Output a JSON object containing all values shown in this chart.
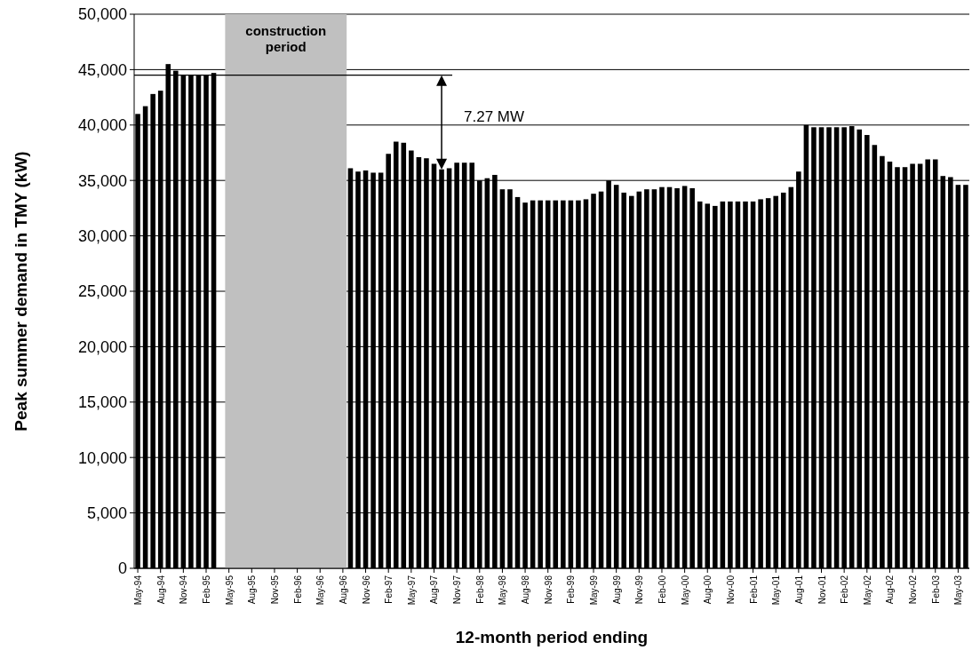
{
  "chart_data": {
    "type": "bar",
    "xlabel": "12-month period ending",
    "ylabel": "Peak summer demand in TMY (kW)",
    "categories": [
      "May-94",
      null,
      null,
      "Aug-94",
      null,
      null,
      "Nov-94",
      null,
      null,
      "Feb-95",
      null,
      null,
      "May-95",
      null,
      null,
      "Aug-95",
      null,
      null,
      "Nov-95",
      null,
      null,
      "Feb-96",
      null,
      null,
      "May-96",
      null,
      null,
      "Aug-96",
      null,
      null,
      "Nov-96",
      null,
      null,
      "Feb-97",
      null,
      null,
      "May-97",
      null,
      null,
      "Aug-97",
      null,
      null,
      "Nov-97",
      null,
      null,
      "Feb-98",
      null,
      null,
      "May-98",
      null,
      null,
      "Aug-98",
      null,
      null,
      "Nov-98",
      null,
      null,
      "Feb-99",
      null,
      null,
      "May-99",
      null,
      null,
      "Aug-99",
      null,
      null,
      "Nov-99",
      null,
      null,
      "Feb-00",
      null,
      null,
      "May-00",
      null,
      null,
      "Aug-00",
      null,
      null,
      "Nov-00",
      null,
      null,
      "Feb-01",
      null,
      null,
      "May-01",
      null,
      null,
      "Aug-01",
      null,
      null,
      "Nov-01",
      null,
      null,
      "Feb-02",
      null,
      null,
      "May-02",
      null,
      null,
      "Aug-02",
      null,
      null,
      "Nov-02",
      null,
      null,
      "Feb-03",
      null,
      null,
      "May-03",
      null
    ],
    "values": [
      41000,
      41700,
      42800,
      43100,
      45500,
      44900,
      44500,
      44500,
      44500,
      44500,
      44700,
      null,
      null,
      null,
      null,
      null,
      null,
      null,
      null,
      null,
      null,
      null,
      null,
      null,
      null,
      null,
      null,
      null,
      36100,
      35800,
      35900,
      35700,
      35700,
      37400,
      38500,
      38400,
      37700,
      37100,
      37000,
      36500,
      36000,
      36100,
      36600,
      36600,
      36600,
      35000,
      35200,
      35500,
      34200,
      34200,
      33500,
      33000,
      33200,
      33200,
      33200,
      33200,
      33200,
      33200,
      33200,
      33300,
      33800,
      34000,
      35000,
      34600,
      33900,
      33600,
      34000,
      34200,
      34200,
      34400,
      34400,
      34300,
      34500,
      34300,
      33100,
      32900,
      32700,
      33100,
      33100,
      33100,
      33100,
      33100,
      33300,
      33400,
      33600,
      33900,
      34400,
      35800,
      40000,
      39800,
      39800,
      39800,
      39800,
      39800,
      39900,
      39600,
      39100,
      38200,
      37200,
      36700,
      36200,
      36200,
      36500,
      36500,
      36900,
      36900,
      35400,
      35300,
      34600,
      34600
    ],
    "color": "#000000",
    "ylim": [
      0,
      50000
    ],
    "yticks": [
      {
        "value": 0,
        "label": "0"
      },
      {
        "value": 5000,
        "label": "5,000"
      },
      {
        "value": 10000,
        "label": "10,000"
      },
      {
        "value": 15000,
        "label": "15,000"
      },
      {
        "value": 20000,
        "label": "20,000"
      },
      {
        "value": 25000,
        "label": "25,000"
      },
      {
        "value": 30000,
        "label": "30,000"
      },
      {
        "value": 35000,
        "label": "35,000"
      },
      {
        "value": 40000,
        "label": "40,000"
      },
      {
        "value": 45000,
        "label": "45,000"
      },
      {
        "value": 50000,
        "label": "50,000"
      }
    ],
    "grid": "y",
    "bands": [
      {
        "axis": "x",
        "from": "May-95",
        "to": "Aug-96",
        "label": "construction period",
        "color": "#c0c0c0"
      }
    ],
    "annotations": [
      "7.27 MW"
    ]
  }
}
